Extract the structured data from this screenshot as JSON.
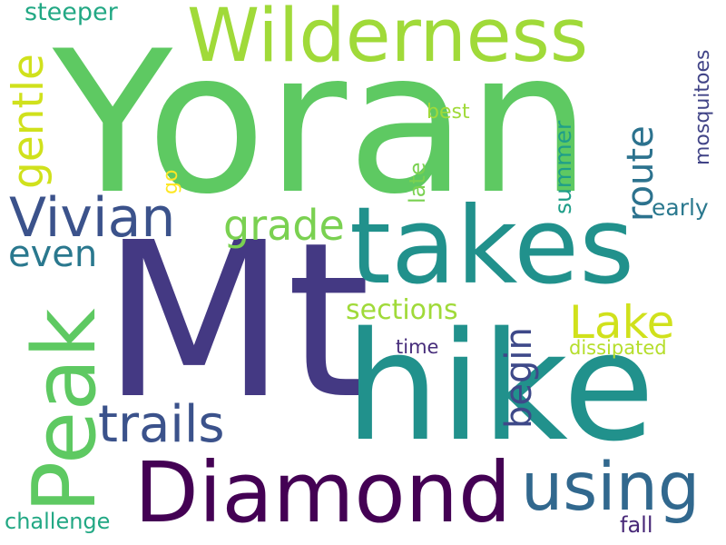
{
  "words": {
    "yoran": {
      "text": "Yoran",
      "color": "#5ec962"
    },
    "mt": {
      "text": "Mt",
      "color": "#443983"
    },
    "hike": {
      "text": "hike",
      "color": "#21918c"
    },
    "takes": {
      "text": "takes",
      "color": "#21918c"
    },
    "wilderness": {
      "text": "Wilderness",
      "color": "#a0da39"
    },
    "diamond": {
      "text": "Diamond",
      "color": "#440154"
    },
    "peak": {
      "text": "Peak",
      "color": "#5ec962"
    },
    "vivian": {
      "text": "Vivian",
      "color": "#3b528b"
    },
    "using": {
      "text": "using",
      "color": "#31688e"
    },
    "trails": {
      "text": "trails",
      "color": "#3b528b"
    },
    "lake": {
      "text": "Lake",
      "color": "#d0e11c"
    },
    "grade": {
      "text": "grade",
      "color": "#7ad151"
    },
    "gentle": {
      "text": "gentle",
      "color": "#d0e11c"
    },
    "even": {
      "text": "even",
      "color": "#2a788e"
    },
    "begin": {
      "text": "begin",
      "color": "#3e4989"
    },
    "route": {
      "text": "route",
      "color": "#2c728e"
    },
    "sections": {
      "text": "sections",
      "color": "#a0da39"
    },
    "steeper": {
      "text": "steeper",
      "color": "#22a884"
    },
    "mosquitoes": {
      "text": "mosquitoes",
      "color": "#414487"
    },
    "best": {
      "text": "best",
      "color": "#a0da39"
    },
    "early": {
      "text": "early",
      "color": "#2a788e"
    },
    "summer": {
      "text": "summer",
      "color": "#1f9e89"
    },
    "late": {
      "text": "late",
      "color": "#7ad151"
    },
    "go": {
      "text": "go",
      "color": "#fde725"
    },
    "time": {
      "text": "time",
      "color": "#472d7b"
    },
    "dissipated": {
      "text": "dissipated",
      "color": "#b5de2b"
    },
    "challenge": {
      "text": "challenge",
      "color": "#22a884"
    },
    "fall": {
      "text": "fall",
      "color": "#482878"
    }
  }
}
